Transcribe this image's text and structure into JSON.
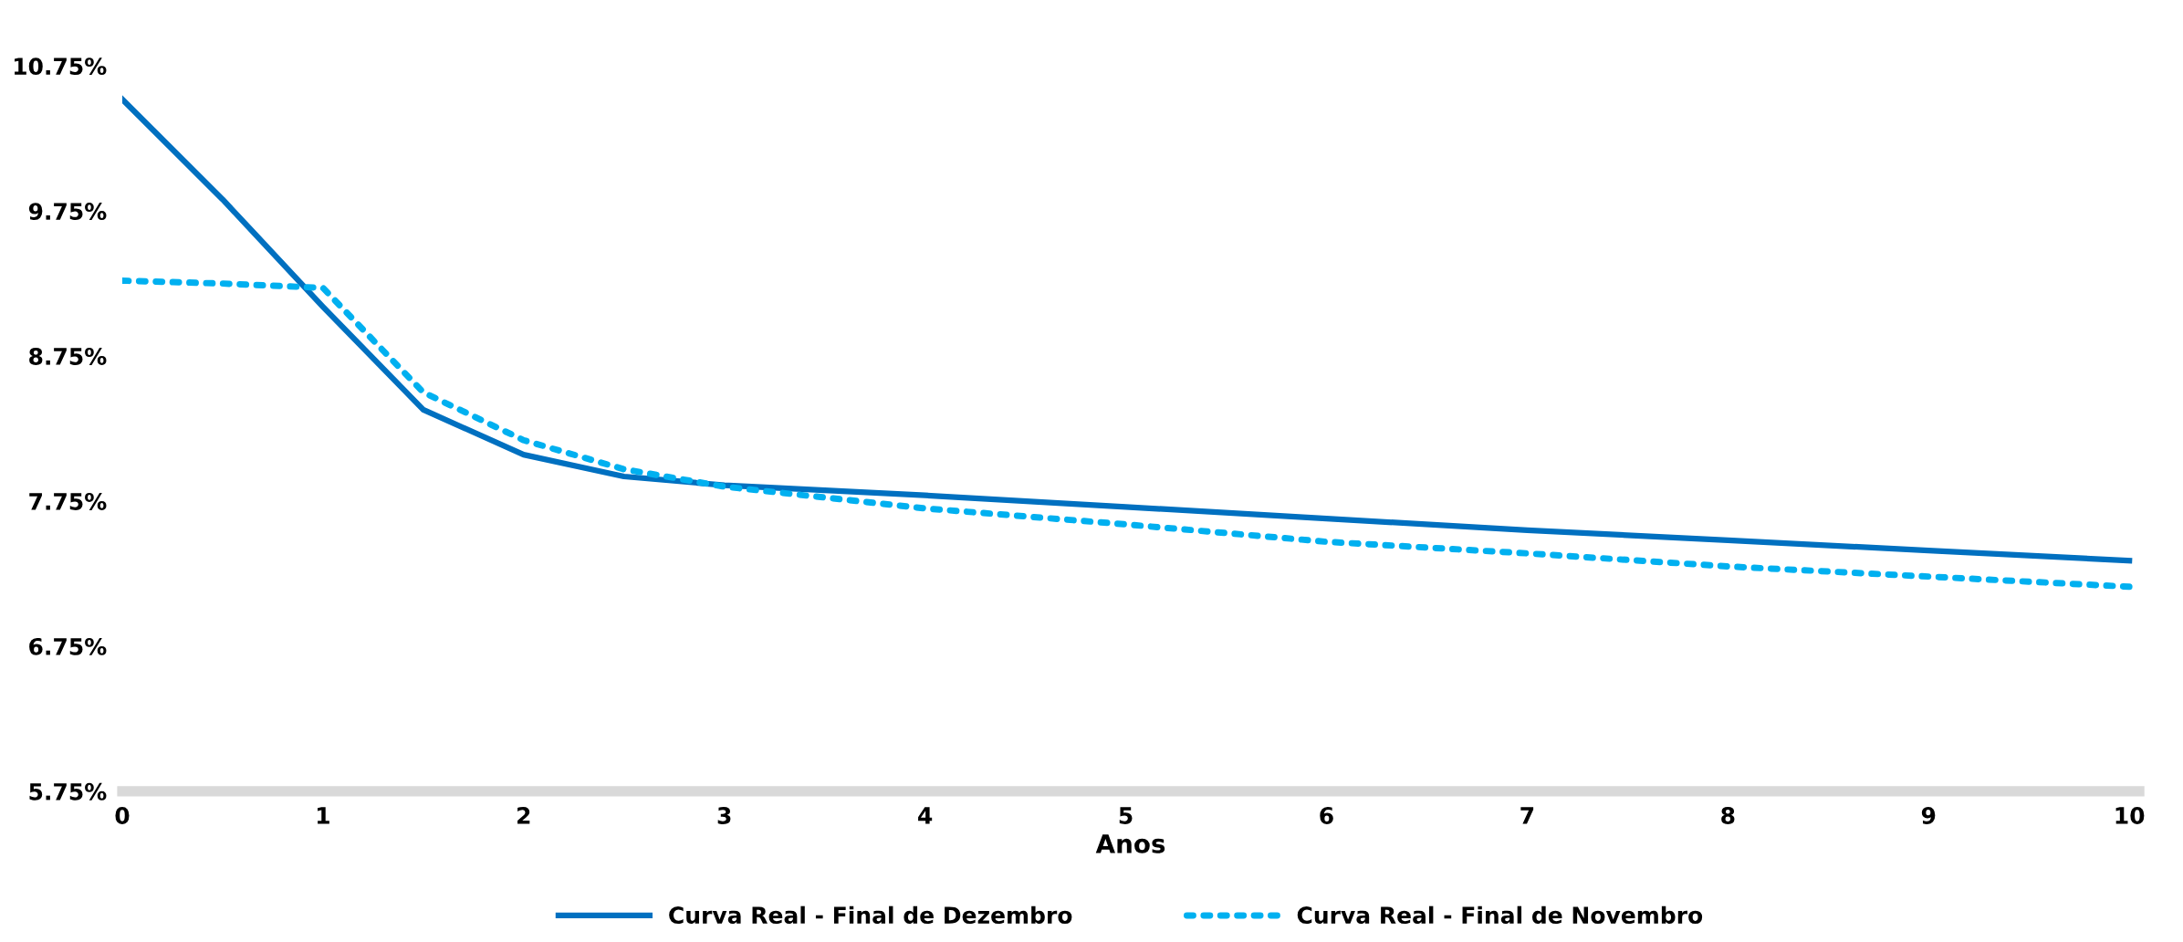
{
  "chart_data": {
    "type": "line",
    "xlabel": "Anos",
    "series": [
      {
        "name": "Curva Real - Final de Dezembro",
        "color": "#0070c0",
        "line_style": "solid",
        "x": [
          0,
          0.5,
          1,
          1.5,
          2,
          2.5,
          3,
          4,
          5,
          6,
          7,
          8,
          9,
          10
        ],
        "values": [
          10.52,
          9.83,
          9.09,
          8.38,
          8.07,
          7.92,
          7.86,
          7.79,
          7.71,
          7.63,
          7.55,
          7.48,
          7.41,
          7.34
        ]
      },
      {
        "name": "Curva Real - Final de Novembro",
        "color": "#00b0f0",
        "line_style": "dotted",
        "x": [
          0,
          0.5,
          1,
          1.5,
          2,
          2.5,
          3,
          4,
          5,
          6,
          7,
          8,
          9,
          10
        ],
        "values": [
          9.27,
          9.25,
          9.22,
          8.5,
          8.17,
          7.97,
          7.85,
          7.7,
          7.59,
          7.47,
          7.39,
          7.3,
          7.23,
          7.16
        ]
      }
    ],
    "xlim": [
      0,
      10.05
    ],
    "xticks": [
      0,
      1,
      2,
      3,
      4,
      5,
      6,
      7,
      8,
      9,
      10
    ],
    "ylim": [
      5.75,
      10.75
    ],
    "yticks": [
      {
        "value": 5.75,
        "label": "5.75%"
      },
      {
        "value": 6.75,
        "label": "6.75%"
      },
      {
        "value": 7.75,
        "label": "7.75%"
      },
      {
        "value": 8.75,
        "label": "8.75%"
      },
      {
        "value": 9.75,
        "label": "9.75%"
      },
      {
        "value": 10.75,
        "label": "10.75%"
      }
    ],
    "grid": false,
    "legend": "bottom",
    "marker": "none"
  }
}
